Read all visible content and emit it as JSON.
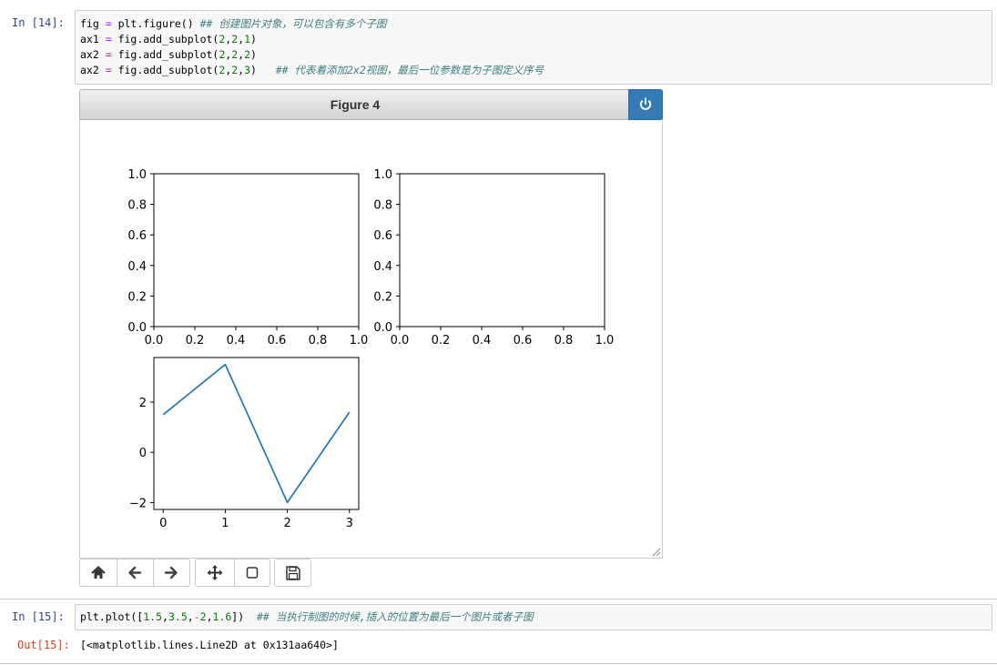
{
  "cell14": {
    "prompt": "In  [14]:",
    "lines": [
      {
        "parts": [
          [
            "t",
            "fig "
          ],
          [
            "op",
            "="
          ],
          [
            "t",
            " plt.figure() "
          ],
          [
            "c",
            "## 创建图片对象，可以包含有多个子图"
          ]
        ]
      },
      {
        "parts": [
          [
            "t",
            "ax1 "
          ],
          [
            "op",
            "="
          ],
          [
            "t",
            " fig.add_subplot("
          ],
          [
            "n",
            "2"
          ],
          [
            "t",
            ","
          ],
          [
            "n",
            "2"
          ],
          [
            "t",
            ","
          ],
          [
            "n",
            "1"
          ],
          [
            "t",
            ")"
          ]
        ]
      },
      {
        "parts": [
          [
            "t",
            "ax2 "
          ],
          [
            "op",
            "="
          ],
          [
            "t",
            " fig.add_subplot("
          ],
          [
            "n",
            "2"
          ],
          [
            "t",
            ","
          ],
          [
            "n",
            "2"
          ],
          [
            "t",
            ","
          ],
          [
            "n",
            "2"
          ],
          [
            "t",
            ")"
          ]
        ]
      },
      {
        "parts": [
          [
            "t",
            "ax2 "
          ],
          [
            "op",
            "="
          ],
          [
            "t",
            " fig.add_subplot("
          ],
          [
            "n",
            "2"
          ],
          [
            "t",
            ","
          ],
          [
            "n",
            "2"
          ],
          [
            "t",
            ","
          ],
          [
            "n",
            "3"
          ],
          [
            "t",
            ")   "
          ],
          [
            "c",
            "## 代表着添加2x2视图，最后一位参数是为子图定义序号"
          ]
        ]
      }
    ]
  },
  "figure": {
    "title": "Figure 4",
    "power_icon": "power-icon",
    "toolbar": [
      {
        "icon": "home-icon",
        "label": "Home"
      },
      {
        "icon": "arrow-left-icon",
        "label": "Back"
      },
      {
        "icon": "arrow-right-icon",
        "label": "Forward"
      },
      {
        "icon": "move-icon",
        "label": "Pan"
      },
      {
        "icon": "zoom-rect-icon",
        "label": "Zoom"
      },
      {
        "icon": "save-icon",
        "label": "Download"
      }
    ]
  },
  "chart_data": [
    {
      "type": "line",
      "subplot": 1,
      "series": [],
      "xlim": [
        0,
        1
      ],
      "ylim": [
        0,
        1
      ],
      "xticks": [
        "0.0",
        "0.2",
        "0.4",
        "0.6",
        "0.8",
        "1.0"
      ],
      "yticks": [
        "0.0",
        "0.2",
        "0.4",
        "0.6",
        "0.8",
        "1.0"
      ],
      "grid": false
    },
    {
      "type": "line",
      "subplot": 2,
      "series": [],
      "xlim": [
        0,
        1
      ],
      "ylim": [
        0,
        1
      ],
      "xticks": [
        "0.0",
        "0.2",
        "0.4",
        "0.6",
        "0.8",
        "1.0"
      ],
      "yticks": [
        "0.0",
        "0.2",
        "0.4",
        "0.6",
        "0.8",
        "1.0"
      ],
      "grid": false
    },
    {
      "type": "line",
      "subplot": 3,
      "x": [
        0,
        1,
        2,
        3
      ],
      "series": [
        {
          "values": [
            1.5,
            3.5,
            -2,
            1.6
          ],
          "color": "#1f77b4"
        }
      ],
      "xlim": [
        -0.15,
        3.15
      ],
      "ylim": [
        -2.275,
        3.775
      ],
      "xticks": [
        "0",
        "1",
        "2",
        "3"
      ],
      "xtick_values": [
        0,
        1,
        2,
        3
      ],
      "yticks": [
        "−2",
        "0",
        "2"
      ],
      "ytick_values": [
        -2,
        0,
        2
      ],
      "grid": false
    }
  ],
  "cell15": {
    "prompt": "In  [15]:",
    "parts": [
      [
        "t",
        "plt.plot(["
      ],
      [
        "n",
        "1.5"
      ],
      [
        "t",
        ","
      ],
      [
        "n",
        "3.5"
      ],
      [
        "t",
        ","
      ],
      [
        "op",
        "-"
      ],
      [
        "n",
        "2"
      ],
      [
        "t",
        ","
      ],
      [
        "n",
        "1.6"
      ],
      [
        "t",
        "])  "
      ],
      [
        "c",
        "## 当执行制图的时候,插入的位置为最后一个图片或者子图"
      ]
    ],
    "out_prompt": "Out[15]:",
    "output": "[<matplotlib.lines.Line2D at 0x131aa640>]"
  }
}
